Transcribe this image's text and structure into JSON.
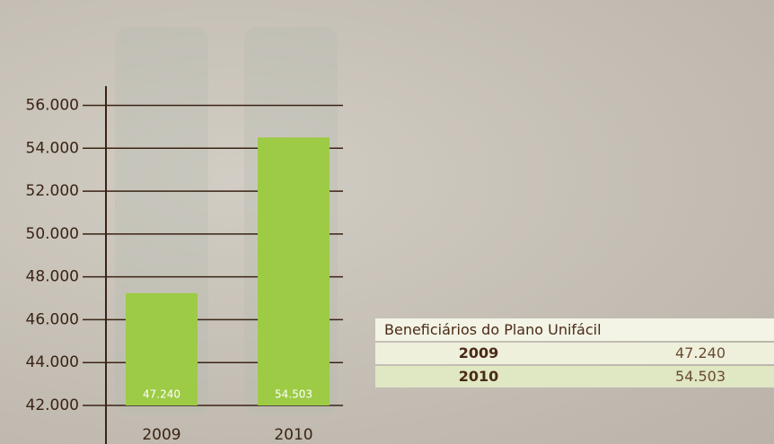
{
  "chart_data": {
    "type": "bar",
    "categories": [
      "2009",
      "2010"
    ],
    "values": [
      47240,
      54503
    ],
    "value_labels": [
      "47.240",
      "54.503"
    ],
    "color": "#9dcb45",
    "ylim": [
      42000,
      56900
    ],
    "yticks": [
      {
        "value": 42000,
        "label": "42.000"
      },
      {
        "value": 44000,
        "label": "44.000"
      },
      {
        "value": 46000,
        "label": "46.000"
      },
      {
        "value": 48000,
        "label": "48.000"
      },
      {
        "value": 50000,
        "label": "50.000"
      },
      {
        "value": 52000,
        "label": "52.000"
      },
      {
        "value": 54000,
        "label": "54.000"
      },
      {
        "value": 56000,
        "label": "56.000"
      }
    ],
    "grid": true
  },
  "table": {
    "title": "Beneficiários do Plano Unifácil",
    "rows": [
      [
        "2009",
        "47.240"
      ],
      [
        "2010",
        "54.503"
      ]
    ]
  }
}
